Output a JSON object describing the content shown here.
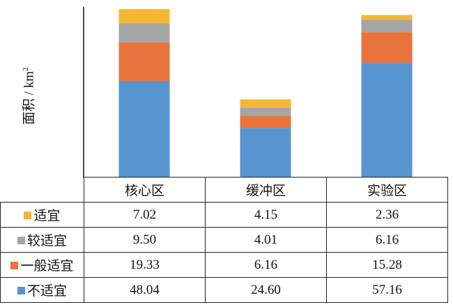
{
  "chart_data": {
    "type": "bar",
    "stacked": true,
    "ylabel": "面积 / km",
    "ylabel_sup": "2",
    "categories": [
      "核心区",
      "缓冲区",
      "实验区"
    ],
    "series": [
      {
        "name": "适宜",
        "color": "#f5b731",
        "values": [
          7.02,
          4.15,
          2.36
        ],
        "labels": [
          "7.02",
          "4.15",
          "2.36"
        ]
      },
      {
        "name": "较适宜",
        "color": "#a5a5a5",
        "values": [
          9.5,
          4.01,
          6.16
        ],
        "labels": [
          "9.50",
          "4.01",
          "6.16"
        ]
      },
      {
        "name": "一般适宜",
        "color": "#e8743b",
        "values": [
          19.33,
          6.16,
          15.28
        ],
        "labels": [
          "19.33",
          "6.16",
          "15.28"
        ]
      },
      {
        "name": "不适宜",
        "color": "#5695cf",
        "values": [
          48.04,
          24.6,
          57.16
        ],
        "labels": [
          "48.04",
          "24.60",
          "57.16"
        ]
      }
    ],
    "stack_order_bottom_to_top": [
      "不适宜",
      "一般适宜",
      "较适宜",
      "适宜"
    ],
    "ylim": [
      0,
      85
    ],
    "grid": false,
    "legend": "data-table"
  }
}
